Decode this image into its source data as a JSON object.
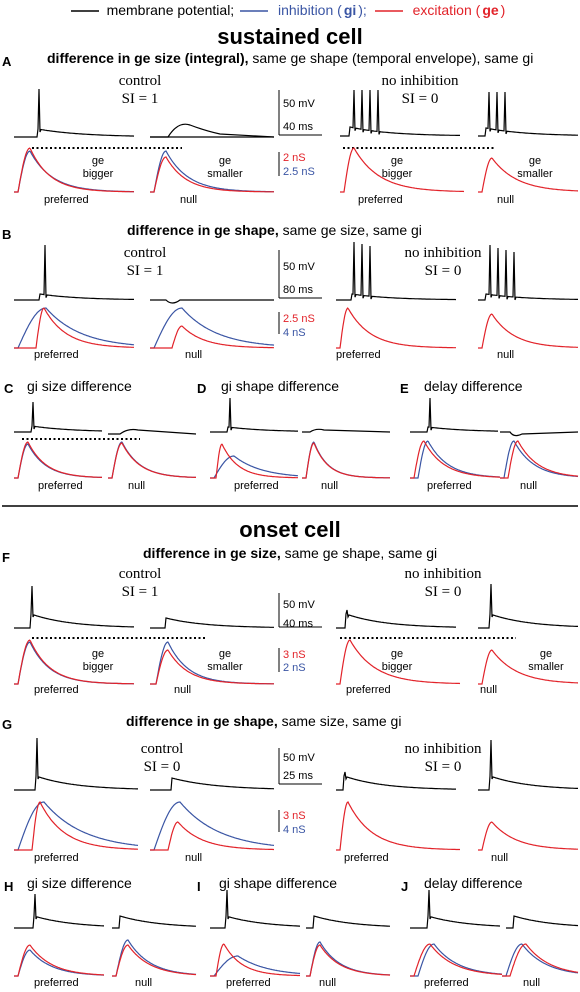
{
  "legend": {
    "membrane": "membrane potential;",
    "inhibition_prefix": "inhibition (",
    "inhibition_sym": "gi",
    "inhibition_suffix": ");",
    "excitation_prefix": "excitation (",
    "excitation_sym": "ge",
    "excitation_suffix": ")"
  },
  "colors": {
    "membrane": "#000000",
    "inhibition": "#3a55a4",
    "excitation": "#e2232a"
  },
  "sections": {
    "sustained": "sustained cell",
    "onset": "onset cell"
  },
  "panels": {
    "A": {
      "letter": "A",
      "title_bold": "difference in ge size (integral),",
      "title_rest": " same ge shape (temporal envelope), same gi",
      "ctrl": "control",
      "ctrl_si": "SI = 1",
      "noinh": "no inhibition",
      "noinh_si": "SI = 0",
      "scale_mv": "50 mV",
      "scale_ms": "40 ms",
      "scale_ns_red": "2 nS",
      "scale_ns_blue": "2.5 nS",
      "ge_bigger": "ge\nbigger",
      "ge_smaller": "ge\nsmaller",
      "pref": "preferred",
      "null": "null"
    },
    "B": {
      "letter": "B",
      "title_bold": "difference in ge shape,",
      "title_rest": " same ge size, same gi",
      "ctrl": "control",
      "ctrl_si": "SI = 1",
      "noinh": "no inhibition",
      "noinh_si": "SI = 0",
      "scale_mv": "50 mV",
      "scale_ms": "80 ms",
      "scale_ns_red": "2.5 nS",
      "scale_ns_blue": "4 nS",
      "pref": "preferred",
      "null": "null"
    },
    "C": {
      "letter": "C",
      "title": "gi size difference",
      "pref": "preferred",
      "null": "null"
    },
    "D": {
      "letter": "D",
      "title": "gi shape difference",
      "pref": "preferred",
      "null": "null"
    },
    "E": {
      "letter": "E",
      "title": "delay difference",
      "pref": "preferred",
      "null": "null"
    },
    "F": {
      "letter": "F",
      "title_bold": "difference in ge size,",
      "title_rest": " same ge shape, same gi",
      "ctrl": "control",
      "ctrl_si": "SI = 1",
      "noinh": "no inhibition",
      "noinh_si": "SI = 0",
      "scale_mv": "50 mV",
      "scale_ms": "40 ms",
      "scale_ns_red": "3 nS",
      "scale_ns_blue": "2 nS",
      "ge_bigger": "ge\nbigger",
      "ge_smaller": "ge\nsmaller",
      "pref": "preferred",
      "null": "null"
    },
    "G": {
      "letter": "G",
      "title_bold": "difference in ge shape,",
      "title_rest": " same size, same gi",
      "ctrl": "control",
      "ctrl_si": "SI = 0",
      "noinh": "no inhibition",
      "noinh_si": "SI = 0",
      "scale_mv": "50 mV",
      "scale_ms": "25 ms",
      "scale_ns_red": "3 nS",
      "scale_ns_blue": "4 nS",
      "pref": "preferred",
      "null": "null"
    },
    "H": {
      "letter": "H",
      "title": "gi size difference",
      "pref": "preferred",
      "null": "null"
    },
    "I": {
      "letter": "I",
      "title": "gi shape difference",
      "pref": "preferred",
      "null": "null"
    },
    "J": {
      "letter": "J",
      "title": "delay difference",
      "pref": "preferred",
      "null": "null"
    }
  }
}
